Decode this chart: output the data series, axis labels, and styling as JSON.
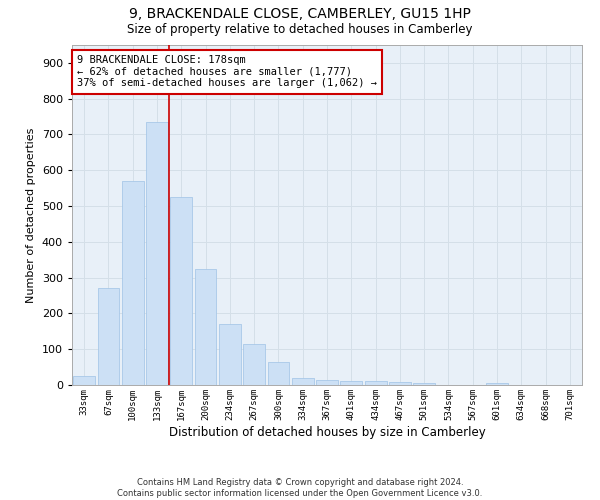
{
  "title": "9, BRACKENDALE CLOSE, CAMBERLEY, GU15 1HP",
  "subtitle": "Size of property relative to detached houses in Camberley",
  "xlabel": "Distribution of detached houses by size in Camberley",
  "ylabel": "Number of detached properties",
  "footer_line1": "Contains HM Land Registry data © Crown copyright and database right 2024.",
  "footer_line2": "Contains public sector information licensed under the Open Government Licence v3.0.",
  "categories": [
    "33sqm",
    "67sqm",
    "100sqm",
    "133sqm",
    "167sqm",
    "200sqm",
    "234sqm",
    "267sqm",
    "300sqm",
    "334sqm",
    "367sqm",
    "401sqm",
    "434sqm",
    "467sqm",
    "501sqm",
    "534sqm",
    "567sqm",
    "601sqm",
    "634sqm",
    "668sqm",
    "701sqm"
  ],
  "values": [
    25,
    270,
    570,
    735,
    525,
    325,
    170,
    115,
    65,
    20,
    15,
    10,
    10,
    8,
    5,
    0,
    0,
    5,
    0,
    0,
    0
  ],
  "bar_color": "#cce0f5",
  "bar_edge_color": "#a8c8e8",
  "grid_color": "#d4dfe8",
  "background_color": "#e8f0f8",
  "red_line_color": "#cc0000",
  "annotation_line1": "9 BRACKENDALE CLOSE: 178sqm",
  "annotation_line2": "← 62% of detached houses are smaller (1,777)",
  "annotation_line3": "37% of semi-detached houses are larger (1,062) →",
  "annotation_box_color": "#ffffff",
  "annotation_box_edge": "#cc0000",
  "ylim": [
    0,
    950
  ],
  "yticks": [
    0,
    100,
    200,
    300,
    400,
    500,
    600,
    700,
    800,
    900
  ]
}
